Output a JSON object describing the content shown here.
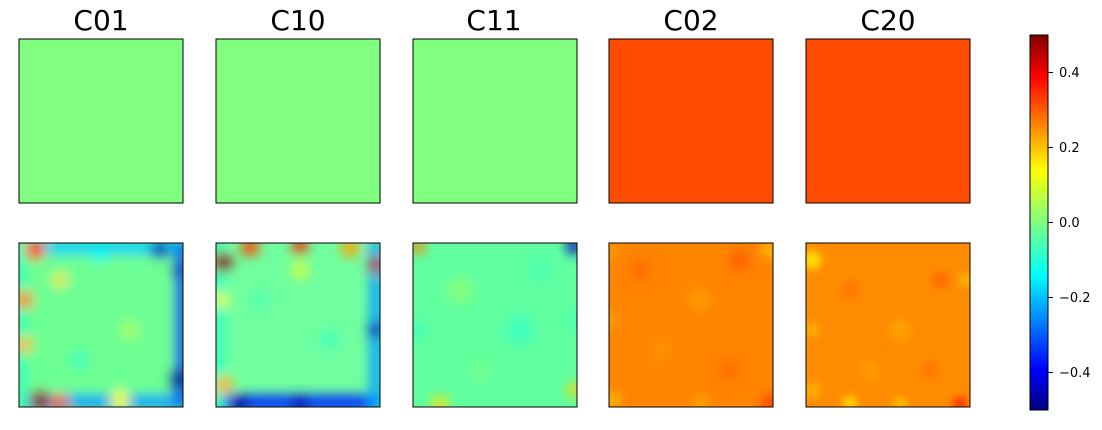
{
  "chart_data": {
    "type": "heatmap",
    "columns": [
      "C01",
      "C10",
      "C11",
      "C02",
      "C20"
    ],
    "rows": 2,
    "top_row_values": [
      0.0,
      0.0,
      0.0,
      0.3,
      0.3
    ],
    "bottom_row_mean_values": [
      -0.05,
      -0.05,
      -0.05,
      0.28,
      0.27
    ],
    "colormap": "jet",
    "colorbar": {
      "vmin": -0.5,
      "vmax": 0.5,
      "ticks": [
        0.4,
        0.2,
        0.0,
        -0.2,
        -0.4
      ],
      "tick_labels": [
        "0.4",
        "0.2",
        "0.0",
        "−0.2",
        "−0.4"
      ],
      "placement": "right"
    },
    "axes_ticks": false
  }
}
